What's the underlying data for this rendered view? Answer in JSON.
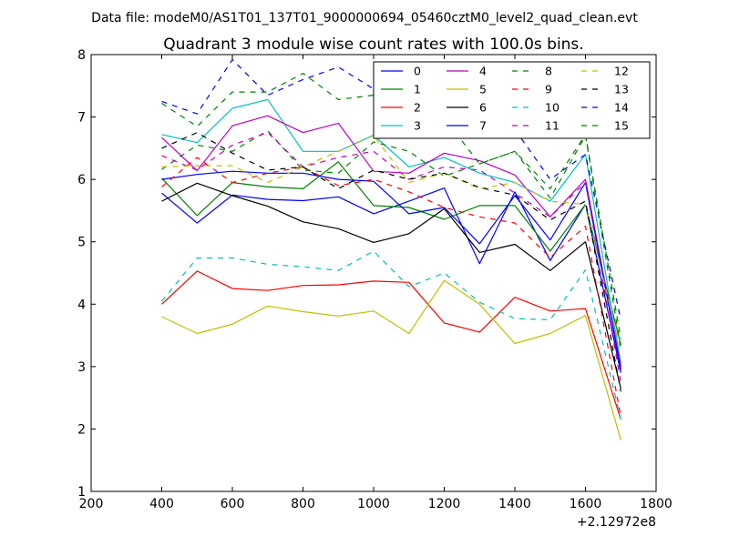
{
  "figure": {
    "suptitle": "Data file: modeM0/AS1T01_137T01_9000000694_05460cztM0_level2_quad_clean.evt"
  },
  "chart_data": {
    "type": "line",
    "title": "Quadrant 3 module wise count rates with 100.0s bins.",
    "xlabel": "",
    "ylabel": "",
    "x_offset_label": "+2.12972e8",
    "xlim": [
      200,
      1800
    ],
    "ylim": [
      1,
      8
    ],
    "xticks": [
      200,
      400,
      600,
      800,
      1000,
      1200,
      1400,
      1600,
      1800
    ],
    "yticks": [
      1,
      2,
      3,
      4,
      5,
      6,
      7,
      8
    ],
    "grid": false,
    "legend": {
      "placement": "top-right",
      "columns": 4
    },
    "x": [
      400,
      500,
      600,
      700,
      800,
      900,
      1000,
      1100,
      1200,
      1300,
      1400,
      1500,
      1600,
      1700
    ],
    "series": [
      {
        "name": "0",
        "color": "#0000ff",
        "dash": "solid",
        "values": [
          5.78,
          5.3,
          5.75,
          5.68,
          5.66,
          5.72,
          5.45,
          5.65,
          5.86,
          4.65,
          5.8,
          4.7,
          5.6,
          2.9
        ]
      },
      {
        "name": "1",
        "color": "#008000",
        "dash": "solid",
        "values": [
          6.02,
          5.42,
          5.95,
          5.88,
          5.85,
          6.28,
          5.58,
          5.55,
          5.36,
          5.58,
          5.58,
          4.85,
          5.6,
          3.35
        ]
      },
      {
        "name": "2",
        "color": "#ff0000",
        "dash": "solid",
        "values": [
          4.0,
          4.53,
          4.25,
          4.22,
          4.3,
          4.31,
          4.37,
          4.35,
          3.7,
          3.55,
          4.11,
          3.89,
          3.93,
          2.15
        ]
      },
      {
        "name": "3",
        "color": "#00bfbf",
        "dash": "solid",
        "values": [
          6.72,
          6.59,
          7.14,
          7.28,
          6.45,
          6.45,
          6.71,
          6.2,
          6.35,
          6.1,
          5.95,
          5.65,
          6.4,
          3.05
        ]
      },
      {
        "name": "4",
        "color": "#bf00bf",
        "dash": "solid",
        "values": [
          6.67,
          6.14,
          6.86,
          7.02,
          6.75,
          6.9,
          6.13,
          6.1,
          6.42,
          6.3,
          6.07,
          5.4,
          6.0,
          3.0
        ]
      },
      {
        "name": "5",
        "color": "#bfbf00",
        "dash": "solid",
        "values": [
          3.8,
          3.53,
          3.68,
          3.97,
          3.88,
          3.81,
          3.89,
          3.53,
          4.38,
          4.0,
          3.37,
          3.53,
          3.82,
          1.82
        ]
      },
      {
        "name": "6",
        "color": "#000000",
        "dash": "solid",
        "values": [
          5.65,
          5.94,
          5.74,
          5.57,
          5.32,
          5.21,
          4.99,
          5.13,
          5.53,
          4.83,
          4.96,
          4.54,
          5.0,
          2.65
        ]
      },
      {
        "name": "7",
        "color": "#0000ff",
        "dash": "solid",
        "values": [
          6.0,
          6.08,
          6.13,
          6.1,
          6.1,
          6.0,
          5.97,
          5.45,
          5.55,
          4.97,
          5.74,
          5.03,
          5.95,
          2.95
        ]
      },
      {
        "name": "8",
        "color": "#008000",
        "dash": "dashed",
        "values": [
          6.16,
          6.55,
          6.45,
          6.78,
          6.15,
          6.1,
          6.6,
          6.45,
          6.05,
          6.25,
          6.45,
          5.85,
          6.72,
          3.45
        ]
      },
      {
        "name": "9",
        "color": "#ff0000",
        "dash": "dashed",
        "values": [
          5.88,
          6.35,
          5.95,
          6.1,
          6.2,
          5.9,
          6.0,
          5.8,
          5.55,
          5.4,
          5.3,
          4.75,
          5.25,
          2.2
        ]
      },
      {
        "name": "10",
        "color": "#00bfbf",
        "dash": "dashed",
        "values": [
          4.05,
          4.74,
          4.74,
          4.64,
          4.6,
          4.54,
          4.85,
          4.28,
          4.5,
          4.03,
          3.77,
          3.75,
          4.55,
          2.15
        ]
      },
      {
        "name": "11",
        "color": "#bf00bf",
        "dash": "dashed",
        "values": [
          6.38,
          6.15,
          6.55,
          6.75,
          6.2,
          6.35,
          6.45,
          6.0,
          6.2,
          6.15,
          5.78,
          5.4,
          5.95,
          2.75
        ]
      },
      {
        "name": "12",
        "color": "#bfbf00",
        "dash": "dashed",
        "values": [
          6.2,
          6.22,
          6.22,
          5.95,
          6.2,
          6.45,
          6.7,
          5.95,
          6.1,
          5.85,
          5.95,
          5.65,
          5.6,
          3.25
        ]
      },
      {
        "name": "13",
        "color": "#000000",
        "dash": "dashed",
        "values": [
          6.5,
          6.75,
          6.42,
          6.15,
          6.2,
          5.85,
          6.15,
          6.0,
          6.1,
          5.87,
          5.75,
          5.35,
          5.65,
          2.6
        ]
      },
      {
        "name": "14",
        "color": "#0000ff",
        "dash": "dashed",
        "values": [
          7.25,
          7.05,
          7.92,
          7.35,
          7.6,
          7.8,
          7.45,
          7.3,
          6.8,
          6.93,
          6.8,
          6.0,
          6.4,
          3.75
        ]
      },
      {
        "name": "15",
        "color": "#008000",
        "dash": "dashed",
        "values": [
          7.22,
          6.85,
          7.4,
          7.4,
          7.7,
          7.28,
          7.35,
          7.1,
          6.98,
          6.25,
          6.45,
          5.7,
          6.7,
          3.3
        ]
      }
    ]
  }
}
